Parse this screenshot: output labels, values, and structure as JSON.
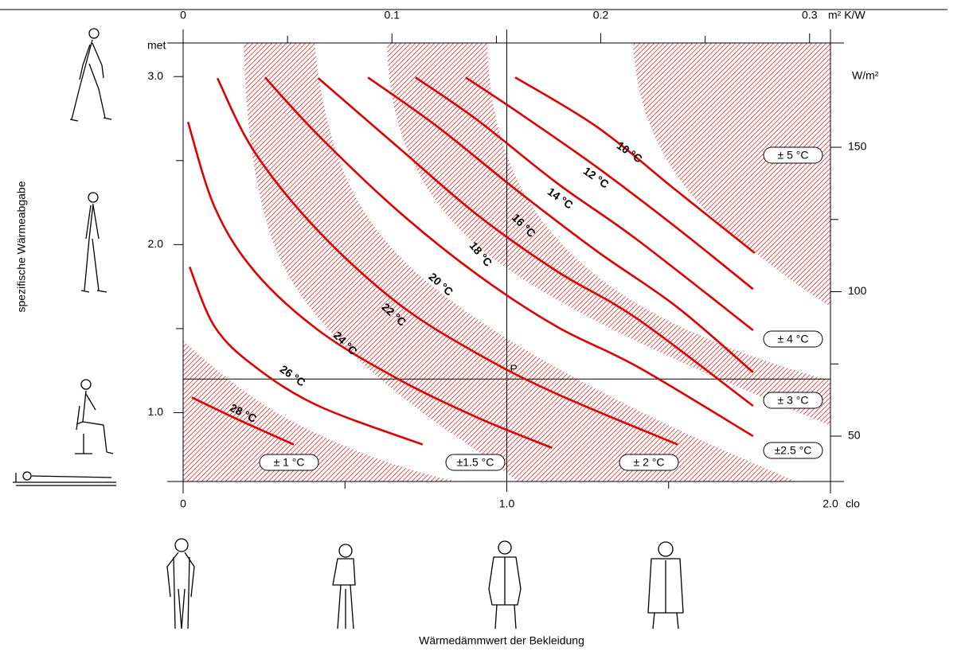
{
  "chart_data": {
    "type": "line",
    "x_label": "Wärmedämmwert der Bekleidung",
    "y_label": "spezifische Wärmeabgabe",
    "x_unit": "clo",
    "x2_unit": "m² K/W",
    "y_unit": "met",
    "y2_unit": "W/m²",
    "xlim": [
      0,
      2.0
    ],
    "xticks": [
      0,
      {
        "value": 1,
        "label": "1.0"
      },
      {
        "value": 2,
        "label": "2.0"
      }
    ],
    "xminorticks": [
      0.5,
      1.5
    ],
    "x2lim": [
      0,
      0.31
    ],
    "x2ticks": [
      0,
      0.1,
      0.2,
      0.3
    ],
    "x2minorticks": [
      0.05,
      0.15,
      0.25
    ],
    "ylim": [
      0.59,
      3.2
    ],
    "yticks": [
      {
        "value": 1,
        "label": "1.0"
      },
      {
        "value": 2,
        "label": "2.0"
      },
      {
        "value": 3,
        "label": "3.0"
      }
    ],
    "yminorticks": [
      1.5,
      2.5
    ],
    "y2lim": [
      34.3,
      186.1
    ],
    "y2ticks": [
      50,
      100,
      150
    ],
    "y2minorticks": [
      75,
      125
    ],
    "grid": false,
    "series": [
      {
        "name": "28 °C",
        "color": "#e00000",
        "x": [
          0.027,
          0.172,
          0.342
        ],
        "values": [
          1.09,
          0.957,
          0.81
        ]
      },
      {
        "name": "26 °C",
        "color": "#e00000",
        "x": [
          0.02,
          0.098,
          0.221,
          0.418,
          0.74
        ],
        "values": [
          1.867,
          1.51,
          1.275,
          1.04,
          0.81
        ]
      },
      {
        "name": "24 °C",
        "color": "#e00000",
        "x": [
          0.015,
          0.098,
          0.221,
          0.418,
          0.664,
          0.91,
          1.14
        ],
        "values": [
          2.73,
          2.22,
          1.84,
          1.49,
          1.2,
          0.97,
          0.79
        ]
      },
      {
        "name": "22 °C",
        "color": "#e00000",
        "x": [
          0.106,
          0.221,
          0.418,
          0.664,
          0.91,
          1.156,
          1.528
        ],
        "values": [
          2.99,
          2.55,
          2.08,
          1.65,
          1.35,
          1.11,
          0.81
        ]
      },
      {
        "name": "20 °C",
        "color": "#e00000",
        "x": [
          0.253,
          0.418,
          0.664,
          0.91,
          1.156,
          1.402,
          1.761
        ],
        "values": [
          2.995,
          2.65,
          2.2,
          1.82,
          1.51,
          1.275,
          0.86
        ]
      },
      {
        "name": "18 °C",
        "color": "#e00000",
        "x": [
          0.418,
          0.664,
          0.91,
          1.156,
          1.402,
          1.761
        ],
        "values": [
          2.99,
          2.58,
          2.175,
          1.84,
          1.56,
          1.04
        ]
      },
      {
        "name": "16 °C",
        "color": "#e00000",
        "x": [
          0.571,
          0.787,
          1.033,
          1.279,
          1.525,
          1.761
        ],
        "values": [
          2.995,
          2.7,
          2.32,
          1.96,
          1.63,
          1.24
        ]
      },
      {
        "name": "14 °C",
        "color": "#e00000",
        "x": [
          0.718,
          0.91,
          1.156,
          1.402,
          1.761
        ],
        "values": [
          2.995,
          2.74,
          2.365,
          2.03,
          1.49
        ]
      },
      {
        "name": "12 °C",
        "color": "#e00000",
        "x": [
          0.873,
          1.033,
          1.279,
          1.525,
          1.761
        ],
        "values": [
          2.995,
          2.79,
          2.46,
          2.1,
          1.735
        ]
      },
      {
        "name": "10 °C",
        "color": "#e00000",
        "x": [
          1.026,
          1.279,
          1.525,
          1.766
        ],
        "values": [
          2.995,
          2.7,
          2.32,
          1.95
        ]
      }
    ],
    "point": {
      "label": "P",
      "x": 1,
      "y": 1.2
    },
    "zone_labels": [
      "± 1 °C",
      "±1.5 °C",
      "± 2 °C",
      "±2.5 °C",
      "± 3 °C",
      "± 4 °C",
      "± 5 °C"
    ]
  }
}
